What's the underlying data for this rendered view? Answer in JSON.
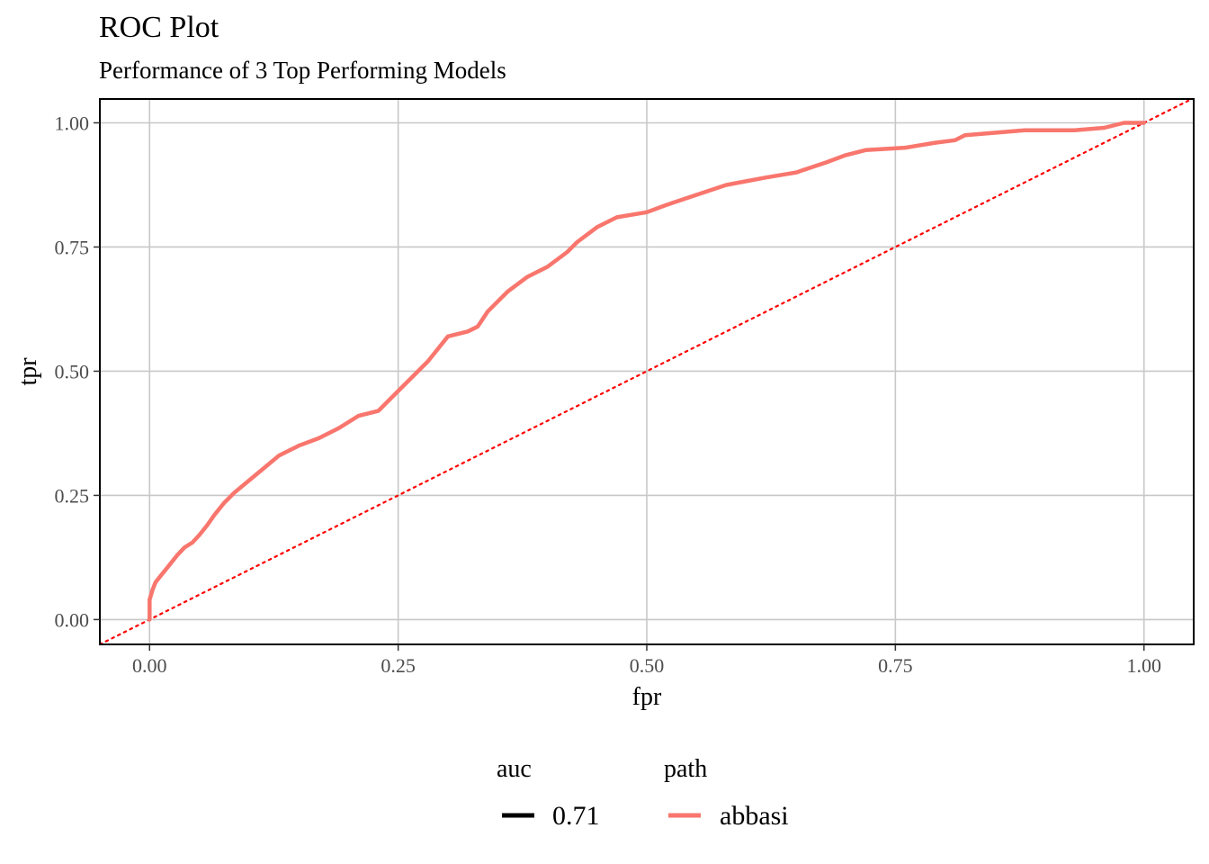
{
  "chart_data": {
    "type": "line",
    "title": "ROC Plot",
    "subtitle": "Performance of 3 Top Performing Models",
    "xlabel": "fpr",
    "ylabel": "tpr",
    "xlim": [
      -0.05,
      1.05
    ],
    "ylim": [
      -0.05,
      1.048
    ],
    "x_ticks": [
      0.0,
      0.25,
      0.5,
      0.75,
      1.0
    ],
    "x_tick_labels": [
      "0.00",
      "0.25",
      "0.50",
      "0.75",
      "1.00"
    ],
    "y_ticks": [
      0.0,
      0.25,
      0.5,
      0.75,
      1.0
    ],
    "y_tick_labels": [
      "0.00",
      "0.25",
      "0.50",
      "0.75",
      "1.00"
    ],
    "grid": true,
    "legend_position": "bottom",
    "legend": {
      "auc": {
        "title": "auc",
        "entries": [
          {
            "label": "0.71",
            "color": "#000000"
          }
        ]
      },
      "path": {
        "title": "path",
        "entries": [
          {
            "label": "abbasi",
            "color": "#F8766D"
          }
        ]
      }
    },
    "reference_line": {
      "style": "dotted",
      "color": "#FF0000",
      "slope": 1,
      "intercept": 0
    },
    "series": [
      {
        "name": "abbasi",
        "color": "#F8766D",
        "x": [
          0.0,
          0.0,
          0.003,
          0.006,
          0.012,
          0.02,
          0.028,
          0.035,
          0.043,
          0.05,
          0.058,
          0.065,
          0.075,
          0.085,
          0.1,
          0.115,
          0.13,
          0.15,
          0.17,
          0.19,
          0.21,
          0.23,
          0.25,
          0.265,
          0.28,
          0.3,
          0.32,
          0.33,
          0.34,
          0.36,
          0.38,
          0.4,
          0.42,
          0.43,
          0.45,
          0.47,
          0.5,
          0.52,
          0.55,
          0.58,
          0.62,
          0.65,
          0.68,
          0.7,
          0.72,
          0.76,
          0.79,
          0.81,
          0.82,
          0.85,
          0.88,
          0.93,
          0.96,
          0.98,
          1.0
        ],
        "y": [
          0.0,
          0.04,
          0.06,
          0.075,
          0.09,
          0.11,
          0.13,
          0.145,
          0.155,
          0.17,
          0.19,
          0.21,
          0.235,
          0.255,
          0.28,
          0.305,
          0.33,
          0.35,
          0.365,
          0.385,
          0.41,
          0.42,
          0.46,
          0.49,
          0.52,
          0.57,
          0.58,
          0.59,
          0.62,
          0.66,
          0.69,
          0.71,
          0.74,
          0.76,
          0.79,
          0.81,
          0.82,
          0.835,
          0.855,
          0.875,
          0.89,
          0.9,
          0.92,
          0.935,
          0.945,
          0.95,
          0.96,
          0.965,
          0.975,
          0.98,
          0.985,
          0.985,
          0.99,
          1.0,
          1.0
        ]
      }
    ]
  }
}
